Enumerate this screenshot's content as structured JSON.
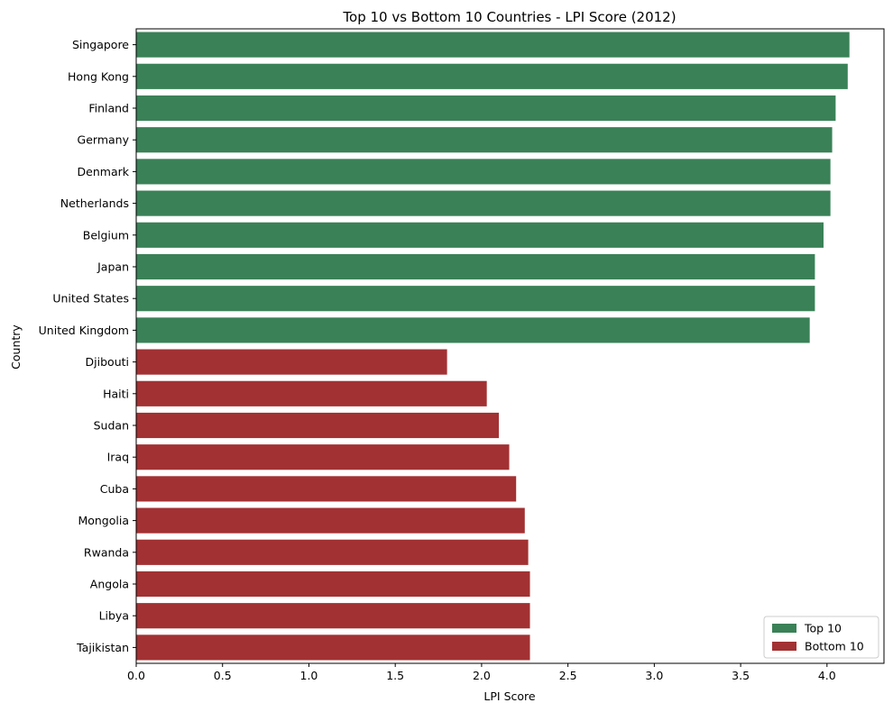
{
  "chart_data": {
    "type": "bar",
    "orientation": "horizontal",
    "title": "Top 10 vs Bottom 10 Countries - LPI Score (2012)",
    "xlabel": "LPI Score",
    "ylabel": "Country",
    "xlim": [
      0,
      4.33
    ],
    "xticks": [
      0.0,
      0.5,
      1.0,
      1.5,
      2.0,
      2.5,
      3.0,
      3.5,
      4.0
    ],
    "xtick_labels": [
      "0.0",
      "0.5",
      "1.0",
      "1.5",
      "2.0",
      "2.5",
      "3.0",
      "3.5",
      "4.0"
    ],
    "grid": false,
    "legend_position": "lower-right",
    "categories": [
      "Singapore",
      "Hong Kong",
      "Finland",
      "Germany",
      "Denmark",
      "Netherlands",
      "Belgium",
      "Japan",
      "United States",
      "United Kingdom",
      "Djibouti",
      "Haiti",
      "Sudan",
      "Iraq",
      "Cuba",
      "Mongolia",
      "Rwanda",
      "Angola",
      "Libya",
      "Tajikistan"
    ],
    "values": [
      4.13,
      4.12,
      4.05,
      4.03,
      4.02,
      4.02,
      3.98,
      3.93,
      3.93,
      3.9,
      1.8,
      2.03,
      2.1,
      2.16,
      2.2,
      2.25,
      2.27,
      2.28,
      2.28,
      2.28
    ],
    "groups": [
      "Top 10",
      "Top 10",
      "Top 10",
      "Top 10",
      "Top 10",
      "Top 10",
      "Top 10",
      "Top 10",
      "Top 10",
      "Top 10",
      "Bottom 10",
      "Bottom 10",
      "Bottom 10",
      "Bottom 10",
      "Bottom 10",
      "Bottom 10",
      "Bottom 10",
      "Bottom 10",
      "Bottom 10",
      "Bottom 10"
    ],
    "series": [
      {
        "name": "Top 10",
        "color": "#3a8157"
      },
      {
        "name": "Bottom 10",
        "color": "#a23133"
      }
    ]
  }
}
